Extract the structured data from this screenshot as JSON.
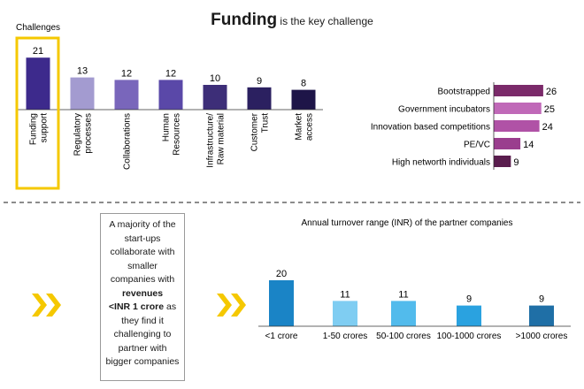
{
  "title": {
    "main": "Funding",
    "rest": " is the key challenge"
  },
  "callout": {
    "line1": "A majority of the start-ups collaborate with smaller companies with ",
    "bold1": "revenues",
    "bold2": "<INR 1 crore",
    "line2": " as they find it challenging to partner with bigger companies"
  },
  "colors": {
    "highlight_border": "#f5c800",
    "chevron": "#f5c800",
    "divider": "#666666"
  },
  "chart_data": [
    {
      "type": "bar",
      "title": "Challenges",
      "categories": [
        "Funding support",
        "Regulatory processes",
        "Collaborations",
        "Human Resources",
        "Infrastructure/ Raw material",
        "Customer Trust",
        "Market access"
      ],
      "category_lines": [
        [
          "Funding",
          "support"
        ],
        [
          "Regulatory",
          "processes"
        ],
        [
          "Collaborations"
        ],
        [
          "Human",
          "Resources"
        ],
        [
          "Infrastructure/",
          "Raw material"
        ],
        [
          "Customer",
          "Trust"
        ],
        [
          "Market",
          "access"
        ]
      ],
      "values": [
        21,
        13,
        12,
        12,
        10,
        9,
        8
      ],
      "colors": [
        "#3d2a8c",
        "#a39bd0",
        "#7966bb",
        "#5a48a8",
        "#3d2e78",
        "#2b2060",
        "#1e1548"
      ],
      "highlighted": "Funding support"
    },
    {
      "type": "bar",
      "orientation": "horizontal",
      "categories": [
        "Bootstrapped",
        "Government incubators",
        "Innovation based competitions",
        "PE/VC",
        "High networth individuals"
      ],
      "values": [
        26,
        25,
        24,
        14,
        9
      ],
      "colors": [
        "#7b2a6a",
        "#c069b8",
        "#b052a6",
        "#9a3e8e",
        "#5a1d4e"
      ]
    },
    {
      "type": "bar",
      "title": "Annual turnover range (INR) of the partner companies",
      "categories": [
        "<1 crore",
        "1-50 crores",
        "50-100 crores",
        "100-1000 crores",
        ">1000 crores"
      ],
      "values": [
        20,
        11,
        11,
        9,
        9
      ],
      "colors": [
        "#1a84c6",
        "#7fcdf2",
        "#52bbec",
        "#2aa2e0",
        "#1f6fa6"
      ]
    }
  ]
}
